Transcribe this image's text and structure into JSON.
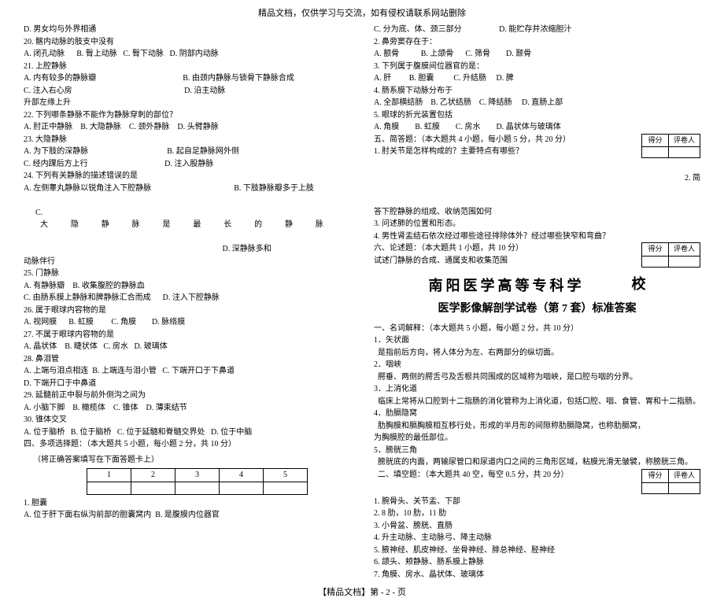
{
  "header": "精品文档，仅供学习与交流，如有侵权请联系网站删除",
  "footer": "【精品文档】第 - 2 - 页",
  "left": {
    "lines": [
      "D. 男女均与外界相通",
      "20. 髂内动脉的肢支中没有",
      "A. 闭孔动脉      B. 臀上动脉   C. 臀下动脉   D. 阴部内动脉",
      "21. 上腔静脉",
      "A. 内有较多的静脉瓣                                            B. 由颈内静脉与锁骨下静脉合成",
      "C. 注入右心房                                                         D. 沿主动脉",
      "升部左缘上升",
      "22. 下列哪条静脉不能作为静脉穿刺的部位？",
      "A. 肘正中静脉    B. 大隐静脉    C. 颈外静脉    D. 头臂静脉",
      "23. 大隐静脉",
      "A. 为下肢的深静脉                                        B. 起自足静脉网外侧",
      "",
      "C. 经内踝后方上行                                       D. 注入股静脉",
      "24. 下列有关静脉的描述错误的是",
      "A. 左侧睾丸静脉以锐角注入下腔静脉                                          B. 下肢静脉瓣多于上肢"
    ],
    "stretchLine": {
      "left": "C.",
      "words": [
        "大",
        "隐",
        "静",
        "脉",
        "是",
        "最",
        "长",
        "的",
        "静",
        "脉"
      ]
    },
    "lines2": [
      "                                                                                                     D. 深静脉多和",
      "动脉伴行",
      "25. 门静脉",
      "A. 有静脉瓣    B. 收集腹腔的静脉血",
      "C. 由肠系膜上静脉和脾静脉汇合而成      D. 注入下腔静脉",
      "26. 属于眼球内容物的是",
      "A. 视网膜      B. 虹膜         C. 角膜        D. 脉络膜",
      "27. 不属于眼球内容物的是",
      "A. 晶状体    B. 睫状体   C. 房水   D. 玻璃体",
      "28. 鼻泪管",
      "A. 上端与泪点相连  B. 上端连与泪小管   C. 下端开口于下鼻道",
      "D. 下端开口于中鼻道",
      "29. 延髓前正中裂与前外侧沟之间为",
      "A. 小脑下脚    B. 橄榄体    C. 锥体    D. 薄束结节",
      "30. 锥体交叉",
      "A. 位于脑桥   B. 位于脑桥   C. 位于延髓和脊髓交界处   D. 位于中脑"
    ],
    "section4": "四、多项选择题：（本大题共 5 小题，每小题 2 分，共 10 分）",
    "section4note": "（将正确答案填写在下面答题卡上）",
    "tableHeaders": [
      "1",
      "2",
      "3",
      "4",
      "5"
    ],
    "lines3": [
      "1. 胆囊",
      "A. 位于肝下面右纵沟前部的胆囊窝内  B. 是腹膜内位器官"
    ]
  },
  "right": {
    "lines": [
      "C. 分为底、体、颈三部分                   D. 能贮存并浓缩胆汁",
      "2. 鼻旁窦存在于：",
      "A. 额骨           B. 上颌骨      C. 筛骨        D. 颞骨",
      "3. 下列属于腹膜间位器官的是：",
      "A. 肝         B. 胆囊          C. 升结肠     D. 脾",
      "4. 肠系膜下动脉分布于",
      "A. 全部横结肠    B. 乙状结肠    C. 降结肠     D. 直肠上部",
      "5. 眼球的折光装置包括",
      "A. 角膜        B. 虹膜        C. 房水        D. 晶状体与玻璃体"
    ],
    "section5": "五、简答题：（本大题共 4 小题，每小题 5 分，共 20 分）",
    "scoreHead": [
      "得分",
      "评卷人"
    ],
    "q1": "1. 肘关节是怎样构成的？主要特点有哪些？",
    "q2right": "2. 简",
    "lines2": [
      "答下腔静脉的组成、收纳范围如何",
      "3. 问述肺的位置和形态。",
      "4. 男性肾盂结石依次经过哪些途径排除体外？经过哪些狭窄和弯曲？"
    ],
    "section6": "六、论述题：（本大题共 1 小题，共 10 分）",
    "q6": "试述门静脉的合成、通属支和收集范围",
    "bigTitle": "南阳医学高等专科学",
    "xiao": "校",
    "subTitle": "医学影像解剖学试卷（第 7 套）标准答案",
    "ans1title": "一、名词解释：（本大题共 5 小题，每小题 2 分，共 10 分）",
    "answers": [
      "1．矢状面",
      "  是指前后方向，将人体分为左、右两部分的纵切面。",
      "2．咽峡",
      "  腭垂、两侧的腭舌弓及舌根共同围成的区域称为咽峡，是口腔与咽的分界。",
      "3．上消化道",
      "  临床上常将从口腔到十二指肠的消化管称为上消化道，包括口腔、咽、食管、胃和十二指肠。",
      "4．肋膈隐窝",
      "  肋胸膜和膈胸膜相互移行处，形成的半月形的间隙称肋膈隐窝，也称肋膈窝，",
      "为胸膜腔的最低部位。",
      "5．膀胱三角",
      "  膀胱底的内面，两输尿管口和尿道内口之间的三角形区域，粘膜光滑无皱襞，称膀胱三角。"
    ],
    "ans2title": "  二、填空题：（本大题共 40 空，每空 0.5 分，共 20 分）",
    "fill": [
      "1. 腕骨头、关节盂、下部",
      "2. 8 肋，10 肋，11 肋",
      "3. 小骨盆、膀胱、直肠",
      "4. 升主动脉、主动脉弓、降主动脉",
      "5. 腋神经、肌皮神经、坐骨神经、腓总神经、胫神经",
      "6. 颌头、颊静脉、肠系膜上静脉",
      "7. 角膜、房水、晶状体、玻璃体"
    ]
  }
}
